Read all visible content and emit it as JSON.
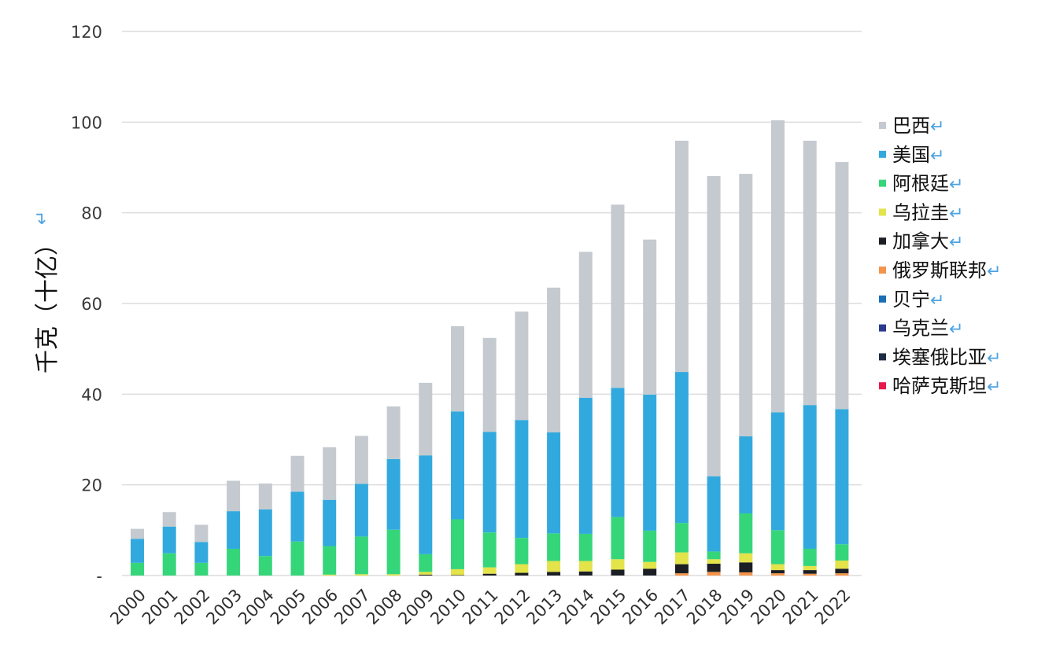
{
  "chart_data": {
    "type": "bar",
    "stacked": true,
    "ylabel": "千克（十亿）",
    "ylabel_mark": "↵",
    "ylim": [
      0,
      120
    ],
    "y_ticks": [
      0,
      20,
      40,
      60,
      80,
      100,
      120
    ],
    "y_tick_labels": [
      "-",
      "20",
      "40",
      "60",
      "80",
      "100",
      "120"
    ],
    "grid": true,
    "legend_position": "right",
    "legend_mark": "↵",
    "categories": [
      "2000",
      "2001",
      "2002",
      "2003",
      "2004",
      "2005",
      "2006",
      "2007",
      "2008",
      "2009",
      "2010",
      "2011",
      "2012",
      "2013",
      "2014",
      "2015",
      "2016",
      "2017",
      "2018",
      "2019",
      "2020",
      "2021",
      "2022"
    ],
    "series": [
      {
        "name": "哈萨克斯坦",
        "color": "#e8194b",
        "values": [
          0,
          0,
          0,
          0,
          0,
          0,
          0,
          0,
          0,
          0,
          0,
          0,
          0,
          0,
          0,
          0,
          0,
          0,
          0,
          0,
          0,
          0,
          0
        ]
      },
      {
        "name": "埃塞俄比亚",
        "color": "#1f2d44",
        "values": [
          0,
          0,
          0,
          0,
          0,
          0,
          0,
          0,
          0,
          0,
          0,
          0,
          0,
          0,
          0,
          0,
          0,
          0,
          0,
          0,
          0,
          0,
          0
        ]
      },
      {
        "name": "乌克兰",
        "color": "#2b3a8c",
        "values": [
          0,
          0,
          0,
          0,
          0,
          0,
          0,
          0,
          0,
          0,
          0,
          0,
          0,
          0,
          0,
          0,
          0,
          0,
          0,
          0,
          0,
          0,
          0
        ]
      },
      {
        "name": "贝宁",
        "color": "#1a6fb5",
        "values": [
          0,
          0,
          0,
          0,
          0,
          0,
          0,
          0,
          0,
          0,
          0,
          0,
          0,
          0,
          0,
          0,
          0,
          0,
          0,
          0,
          0,
          0,
          0
        ]
      },
      {
        "name": "俄罗斯联邦",
        "color": "#f4944a",
        "values": [
          0,
          0,
          0,
          0,
          0,
          0,
          0,
          0,
          0,
          0,
          0,
          0,
          0,
          0,
          0,
          0,
          0,
          0.5,
          0.8,
          0.7,
          0.5,
          0.4,
          0.5
        ]
      },
      {
        "name": "加拿大",
        "color": "#1b1f24",
        "values": [
          0,
          0,
          0,
          0,
          0,
          0,
          0,
          0,
          0,
          0.2,
          0.1,
          0.4,
          0.6,
          0.8,
          0.9,
          1.3,
          1.5,
          2.0,
          1.8,
          2.2,
          0.7,
          0.8,
          1.0
        ]
      },
      {
        "name": "乌拉圭",
        "color": "#e3e34a",
        "values": [
          0,
          0,
          0,
          0,
          0,
          0,
          0.2,
          0.3,
          0.3,
          0.6,
          1.3,
          1.4,
          1.9,
          2.4,
          2.3,
          2.3,
          1.5,
          2.6,
          1.0,
          2.0,
          1.3,
          0.9,
          1.8
        ]
      },
      {
        "name": "阿根廷",
        "color": "#35d67a",
        "values": [
          2.8,
          4.9,
          2.8,
          5.9,
          4.3,
          7.5,
          6.3,
          8.3,
          9.8,
          3.9,
          11.0,
          7.7,
          5.8,
          6.1,
          6.0,
          9.3,
          6.9,
          6.5,
          1.7,
          8.8,
          7.5,
          3.8,
          3.6
        ]
      },
      {
        "name": "美国",
        "color": "#32a9de",
        "values": [
          5.3,
          5.9,
          4.6,
          8.3,
          10.3,
          11.0,
          10.2,
          11.6,
          15.6,
          21.8,
          23.8,
          22.2,
          26.0,
          22.3,
          30.0,
          28.5,
          30.0,
          33.3,
          16.6,
          17.0,
          26.0,
          31.7,
          29.8
        ]
      },
      {
        "name": "巴西",
        "color": "#c4cacf",
        "values": [
          2.2,
          3.2,
          3.8,
          6.7,
          5.7,
          7.9,
          11.6,
          10.6,
          11.6,
          16.0,
          18.8,
          20.7,
          23.9,
          31.9,
          32.2,
          40.4,
          34.2,
          51.0,
          66.2,
          57.9,
          64.4,
          58.3,
          54.5
        ]
      }
    ]
  }
}
